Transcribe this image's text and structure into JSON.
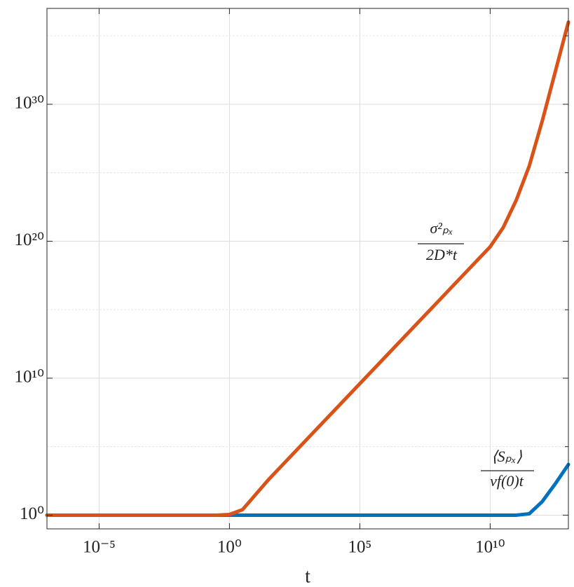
{
  "chart_data": {
    "type": "line",
    "x_label": "t",
    "log_x": true,
    "log_y": true,
    "grid": true,
    "xlim": [
      1e-07,
      10000000000000.0
    ],
    "ylim": [
      0.1,
      1e+37
    ],
    "xticks": [
      {
        "value": 1e-05,
        "label": "10⁻⁵"
      },
      {
        "value": 1,
        "label": "10⁰"
      },
      {
        "value": 100000.0,
        "label": "10⁵"
      },
      {
        "value": 10000000000.0,
        "label": "10¹⁰"
      }
    ],
    "yticks": [
      {
        "value": 1,
        "label": "10⁰"
      },
      {
        "value": 10000000000.0,
        "label": "10¹⁰"
      },
      {
        "value": 1e+20,
        "label": "10²⁰"
      },
      {
        "value": 1e+30,
        "label": "10³⁰"
      }
    ],
    "yminor": [
      100000.0,
      1000000000000000.0,
      1e+25,
      1e+35
    ],
    "x": [
      1e-07,
      0.1,
      0.3162,
      1,
      3.162,
      10,
      31.62,
      100,
      1000,
      10000.0,
      100000.0,
      1000000.0,
      10000000.0,
      100000000.0,
      1000000000.0,
      10000000000.0,
      31620000000.0,
      100000000000.0,
      316200000000.0,
      1000000000000.0,
      3162000000000.0,
      10000000000000.0
    ],
    "series": [
      {
        "name": "⟨Sₚₓ⟩ / vf(0)t",
        "color": "#0072bd",
        "values": [
          1,
          1,
          1,
          1,
          1,
          1,
          1,
          1,
          1,
          1,
          1,
          1,
          1,
          1,
          1,
          1,
          1,
          1,
          1.259,
          10,
          199.5,
          5012
        ]
      },
      {
        "name": "σ²ₚₓ / 2D*t",
        "color": "#d95319",
        "values": [
          1,
          1,
          1,
          1.122,
          2.512,
          31.62,
          398.1,
          3981,
          398100.0,
          39810000.0,
          3981000000.0,
          398100000000.0,
          39810000000000.0,
          3981000000000000.0,
          3.981e+17,
          3.981e+19,
          1e+21,
          1e+23,
          3.162e+25,
          6.31e+28,
          2.512e+32,
          1e+36
        ]
      }
    ],
    "annotations": [
      {
        "numerator": "σ²ₚₓ",
        "denominator": "2D*t"
      },
      {
        "numerator": "⟨Sₚₓ⟩",
        "denominator": "vf(0)t"
      }
    ]
  }
}
